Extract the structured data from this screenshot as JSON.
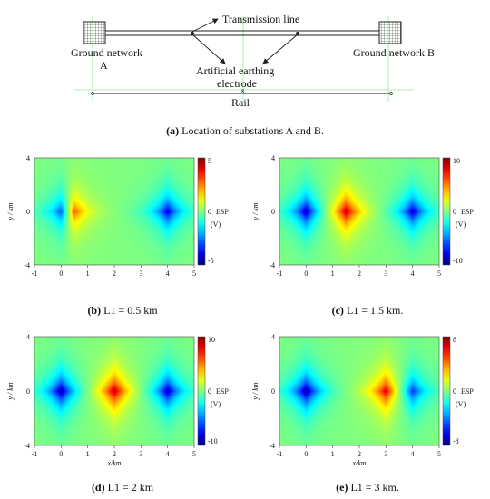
{
  "diagram": {
    "transmission_line": "Transmission line",
    "ground_a": [
      "Ground network",
      "A"
    ],
    "ground_b": "Ground network B",
    "electrode": [
      "Artificial earthing",
      "electrode"
    ],
    "rail": "Rail",
    "small_mark": "g"
  },
  "captions": {
    "a": {
      "tag": "(a)",
      "text": " Location of substations A and B."
    },
    "b": {
      "tag": "(b)",
      "text": " L1 = 0.5 km"
    },
    "c": {
      "tag": "(c)",
      "text": " L1 = 1.5 km."
    },
    "d": {
      "tag": "(d)",
      "text": " L1 = 2 km"
    },
    "e": {
      "tag": "(e)",
      "text": " L1 = 3 km."
    }
  },
  "colors": {
    "line": "#222222",
    "guide": "#7ee07e"
  },
  "chart_data": [
    {
      "type": "heatmap",
      "xlabel": "x/km",
      "ylabel": "y / km",
      "xlim": [
        -1,
        5
      ],
      "ylim": [
        -4,
        4
      ],
      "xticks": [
        "-1",
        "0",
        "1",
        "2",
        "3",
        "4",
        "5"
      ],
      "yticks": [
        "-4",
        "0",
        "4"
      ],
      "colorbar": {
        "label": "ESP",
        "unit": "(V)",
        "range": [
          -5,
          5
        ],
        "ticks": [
          "5",
          "0",
          "-5"
        ]
      },
      "sources": [
        {
          "x": 0,
          "y": 0,
          "value": -1
        },
        {
          "x": 0.5,
          "y": 0,
          "value": 1
        },
        {
          "x": 4,
          "y": 0,
          "value": -0.85
        }
      ]
    },
    {
      "type": "heatmap",
      "xlabel": "x/km",
      "ylabel": "y / km",
      "xlim": [
        -1,
        5
      ],
      "ylim": [
        -4,
        4
      ],
      "xticks": [
        "-1",
        "0",
        "1",
        "2",
        "3",
        "4",
        "5"
      ],
      "yticks": [
        "-4",
        "0",
        "4"
      ],
      "colorbar": {
        "label": "ESP",
        "unit": "(V)",
        "range": [
          -10,
          10
        ],
        "ticks": [
          "10",
          "0",
          "-10"
        ]
      },
      "sources": [
        {
          "x": 0,
          "y": 0,
          "value": -1
        },
        {
          "x": 1.5,
          "y": 0,
          "value": 1
        },
        {
          "x": 4,
          "y": 0,
          "value": -0.9
        }
      ]
    },
    {
      "type": "heatmap",
      "xlabel": "x/km",
      "ylabel": "y / km",
      "xlim": [
        -1,
        5
      ],
      "ylim": [
        -4,
        4
      ],
      "xticks": [
        "-1",
        "0",
        "1",
        "2",
        "3",
        "4",
        "5"
      ],
      "yticks": [
        "-4",
        "0",
        "4"
      ],
      "colorbar": {
        "label": "ESP",
        "unit": "(V)",
        "range": [
          -10,
          10
        ],
        "ticks": [
          "10",
          "0",
          "-10"
        ]
      },
      "sources": [
        {
          "x": 0,
          "y": 0,
          "value": -1
        },
        {
          "x": 2,
          "y": 0,
          "value": 1
        },
        {
          "x": 4,
          "y": 0,
          "value": -0.95
        }
      ]
    },
    {
      "type": "heatmap",
      "xlabel": "x/km",
      "ylabel": "y / km",
      "xlim": [
        -1,
        5
      ],
      "ylim": [
        -4,
        4
      ],
      "xticks": [
        "-1",
        "0",
        "1",
        "2",
        "3",
        "4",
        "5"
      ],
      "yticks": [
        "-4",
        "0",
        "4"
      ],
      "colorbar": {
        "label": "ESP",
        "unit": "(V)",
        "range": [
          -8,
          8
        ],
        "ticks": [
          "8",
          "0",
          "-8"
        ]
      },
      "sources": [
        {
          "x": 0,
          "y": 0,
          "value": -1
        },
        {
          "x": 3,
          "y": 0,
          "value": 1
        },
        {
          "x": 4,
          "y": 0,
          "value": -0.85
        }
      ]
    }
  ]
}
